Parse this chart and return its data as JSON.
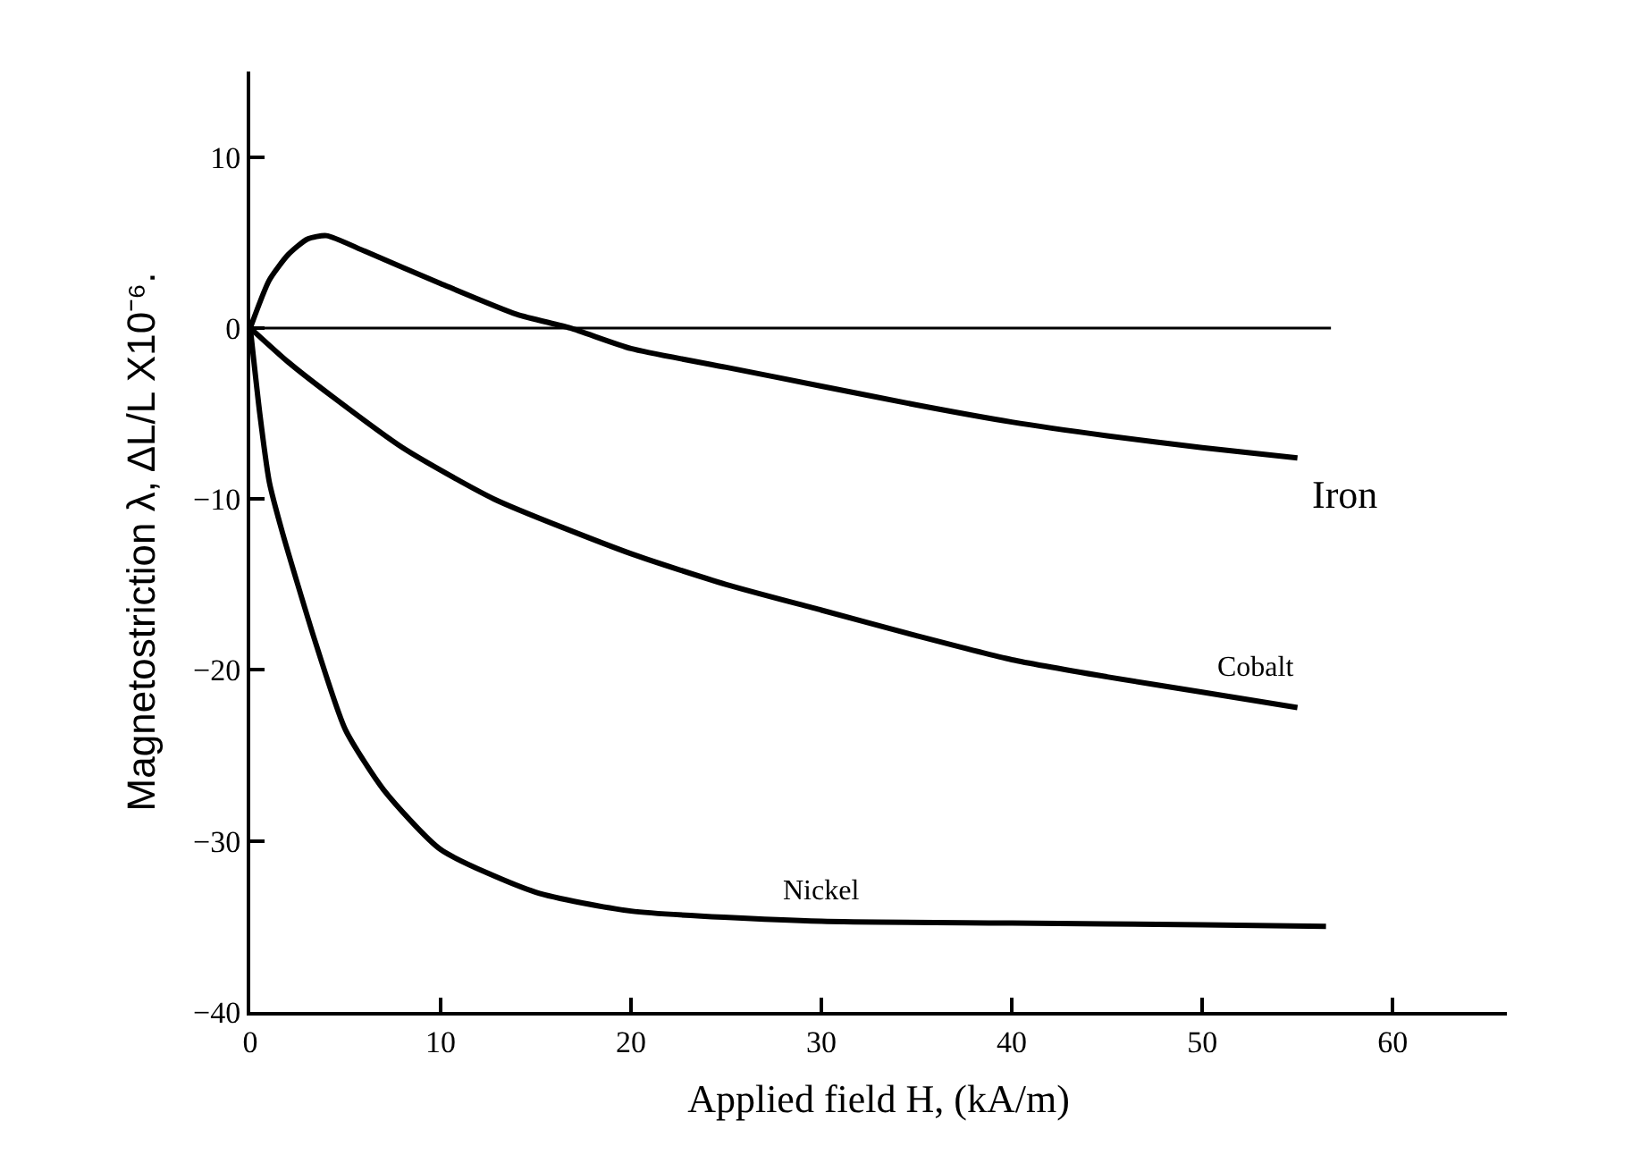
{
  "chart_data": {
    "type": "line",
    "xlabel": "Applied field H, (kA/m)",
    "ylabel": "Magnetostriction λ, ΔL/L X10⁻⁶.",
    "xlim": [
      0,
      66
    ],
    "ylim": [
      -40,
      15
    ],
    "xticks": [
      0,
      10,
      20,
      30,
      40,
      50,
      60
    ],
    "yticks": [
      -40,
      -30,
      -20,
      -10,
      0,
      10
    ],
    "legend": false,
    "marker": "none",
    "line_style": "solid",
    "ref_lines": [
      {
        "axis": "y",
        "value": 0,
        "color": "#000000"
      }
    ],
    "series": [
      {
        "name": "Iron",
        "color": "#000000",
        "x": [
          0,
          1,
          2,
          3,
          4,
          6,
          10,
          14,
          16.8,
          20,
          25,
          30,
          35,
          40,
          45,
          50,
          55
        ],
        "values": [
          0,
          2.8,
          4.3,
          5.2,
          5.4,
          4.5,
          2.6,
          0.8,
          0,
          -1.2,
          -2.3,
          -3.4,
          -4.5,
          -5.5,
          -6.3,
          -7.0,
          -7.6
        ]
      },
      {
        "name": "Cobalt",
        "color": "#000000",
        "x": [
          0,
          2,
          4.3,
          8,
          12.8,
          20,
          25,
          30,
          35,
          40,
          45,
          50,
          55
        ],
        "values": [
          0,
          -2,
          -4,
          -7,
          -10,
          -13.2,
          -15,
          -16.5,
          -18,
          -19.4,
          -20.4,
          -21.3,
          -22.2
        ]
      },
      {
        "name": "Nickel",
        "color": "#000000",
        "x": [
          0,
          0.5,
          1,
          1.7,
          3.4,
          5,
          7,
          10,
          15,
          20,
          30,
          40,
          50,
          56.5
        ],
        "values": [
          0,
          -5,
          -9,
          -12,
          -18.3,
          -23.5,
          -27,
          -30.5,
          -33,
          -34.1,
          -34.7,
          -34.8,
          -34.9,
          -35
        ]
      }
    ]
  }
}
